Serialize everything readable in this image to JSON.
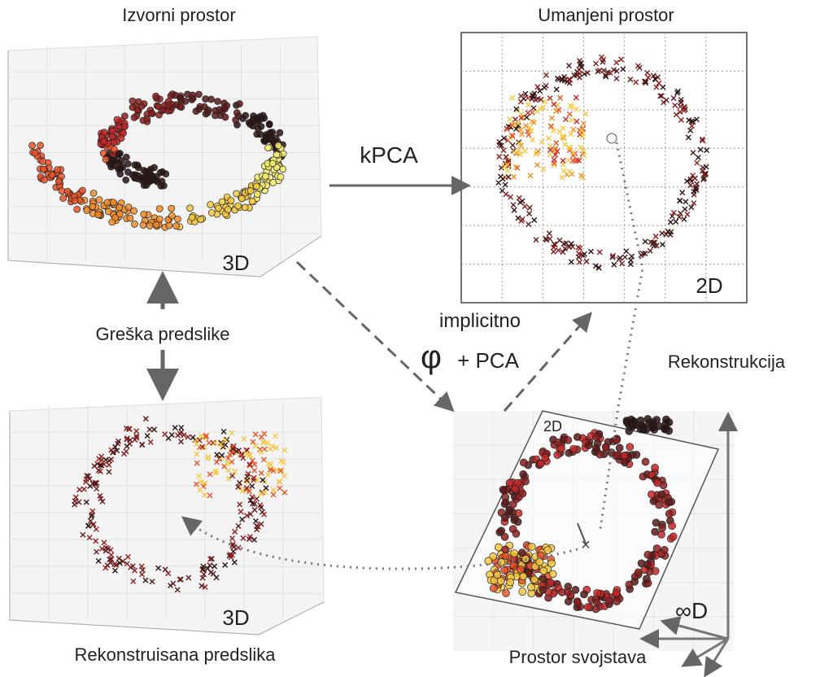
{
  "panels": {
    "original": {
      "title": "Izvorni prostor",
      "dim": "3D"
    },
    "reduced": {
      "title": "Umanjeni prostor",
      "dim": "2D"
    },
    "reconstructed": {
      "title": "Rekonstruisana predslika",
      "dim": "3D"
    },
    "feature": {
      "title": "Prostor svojstava",
      "plane_dim": "2D",
      "dim": "∞D"
    }
  },
  "arrows": {
    "kpca": "kPCA",
    "implicit": "implicitno",
    "phi": "φ",
    "plus_pca": "+ PCA",
    "preimage_error": "Greška predslike",
    "reconstruction": "Rekonstrukcija"
  },
  "colors": {
    "arrow": "#666666",
    "grid": "#dddddd",
    "palette": [
      "#2a1414",
      "#5a1a1a",
      "#8b1e1e",
      "#c62828",
      "#e8542a",
      "#f08c2a",
      "#f5c842",
      "#f7ee70"
    ]
  }
}
